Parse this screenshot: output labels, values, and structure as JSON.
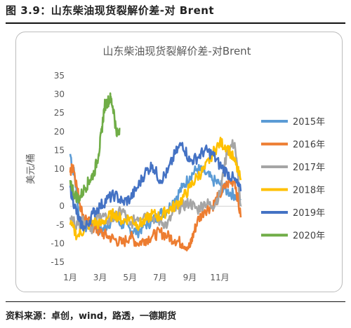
{
  "figure": {
    "caption": "图 3.9：山东柴油现货裂解价差-对 Brent",
    "source": "资料来源：卓创，wind，路透，一德期货"
  },
  "chart_data": {
    "type": "line",
    "title": "山东柴油现货裂解价差-对Brent",
    "ylabel": "美元/桶",
    "xlabel": "",
    "ylim": [
      -15,
      35
    ],
    "yticks": [
      -15,
      -10,
      -5,
      0,
      5,
      10,
      15,
      20,
      25,
      30,
      35
    ],
    "xlim": [
      1,
      12.5
    ],
    "xticks": [
      {
        "x": 1,
        "label": "1月"
      },
      {
        "x": 3,
        "label": "3月"
      },
      {
        "x": 5,
        "label": "5月"
      },
      {
        "x": 7,
        "label": "7月"
      },
      {
        "x": 9,
        "label": "9月"
      },
      {
        "x": 11,
        "label": "11月"
      }
    ],
    "grid": false,
    "legend": "right",
    "series": [
      {
        "name": "2015年",
        "color": "#5B9BD5",
        "x": [
          1,
          1.3,
          1.6,
          2,
          2.5,
          3,
          3.5,
          4,
          4.5,
          5,
          5.5,
          6,
          6.5,
          7,
          7.5,
          8,
          8.5,
          9,
          9.5,
          10,
          10.5,
          11,
          11.5,
          12,
          12.4
        ],
        "y": [
          14,
          8,
          -3,
          -6,
          -4,
          -7,
          -5,
          -3,
          -5,
          -6,
          -7,
          -5,
          -4,
          -2,
          -1,
          2,
          5,
          8,
          10,
          9,
          7,
          6,
          4,
          3,
          2
        ]
      },
      {
        "name": "2016年",
        "color": "#ED7D31",
        "x": [
          1,
          1.2,
          1.5,
          1.8,
          2.2,
          2.6,
          3,
          3.5,
          4,
          4.5,
          5,
          5.5,
          6,
          6.5,
          7,
          7.5,
          8,
          8.5,
          9,
          9.2,
          9.5,
          10,
          10.5,
          11,
          11.5,
          12,
          12.4
        ],
        "y": [
          9,
          11,
          4,
          -2,
          -4,
          -6,
          -7,
          -8,
          -9,
          -10,
          -8,
          -10,
          -9,
          -8,
          -7,
          -8,
          -9,
          -10,
          -11,
          -8,
          -4,
          -1,
          0,
          3,
          6,
          7,
          -3
        ]
      },
      {
        "name": "2017年",
        "color": "#A5A5A5",
        "x": [
          1,
          1.5,
          2,
          2.5,
          3,
          3.5,
          4,
          4.5,
          5,
          5.5,
          6,
          6.5,
          7,
          7.5,
          8,
          8.5,
          9,
          9.5,
          10,
          10.5,
          11,
          11.5,
          12,
          12.4
        ],
        "y": [
          -3,
          -5,
          -4,
          -6,
          -2,
          -4,
          -3,
          -1,
          -5,
          -3,
          -2,
          -3,
          -4,
          -5,
          -1,
          0,
          1,
          -1,
          1,
          0,
          3,
          15,
          17,
          0
        ]
      },
      {
        "name": "2018年",
        "color": "#FFC000",
        "x": [
          1,
          1.5,
          2,
          2.5,
          3,
          3.5,
          4,
          4.5,
          5,
          5.5,
          6,
          6.5,
          7,
          7.5,
          8,
          8.5,
          9,
          9.5,
          10,
          10.5,
          11,
          11.5,
          12,
          12.4
        ],
        "y": [
          -5,
          -8,
          -6,
          -4,
          -5,
          -3,
          -2,
          -4,
          -3,
          -5,
          -4,
          -2,
          -3,
          -1,
          0,
          2,
          5,
          8,
          10,
          14,
          17,
          16,
          12,
          7
        ]
      },
      {
        "name": "2019年",
        "color": "#4472C4",
        "x": [
          1,
          1.3,
          1.6,
          2,
          2.5,
          3,
          3.5,
          4,
          4.5,
          5,
          5.5,
          6,
          6.5,
          7,
          7.5,
          8,
          8.5,
          9,
          9.5,
          10,
          10.5,
          11,
          11.5,
          12,
          12.4
        ],
        "y": [
          5,
          0,
          -4,
          -6,
          -2,
          0,
          2,
          3,
          1,
          2,
          5,
          9,
          11,
          7,
          9,
          14,
          17,
          12,
          13,
          15,
          14,
          11,
          9,
          7,
          4
        ]
      },
      {
        "name": "2020年",
        "color": "#70AD47",
        "x": [
          1,
          1.3,
          1.6,
          2,
          2.3,
          2.6,
          2.9,
          3.1,
          3.3,
          3.5,
          3.7,
          3.9,
          4.1,
          4.3
        ],
        "y": [
          7,
          3,
          2,
          5,
          7,
          9,
          14,
          20,
          27,
          28,
          29,
          26,
          19,
          21
        ]
      }
    ]
  }
}
